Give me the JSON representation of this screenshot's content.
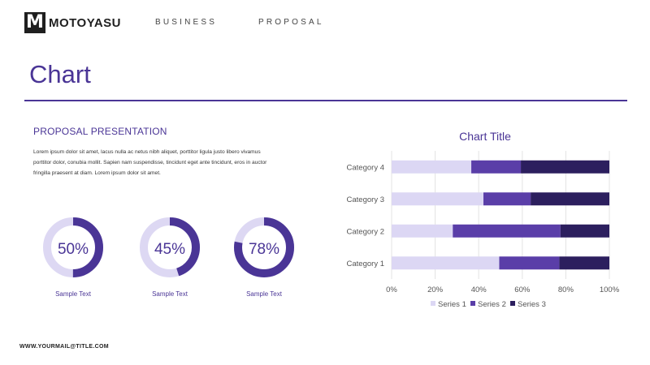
{
  "header": {
    "logo_letter": "M",
    "logo_name": "MOTOYASU",
    "word1": "BUSINESS",
    "word2": "PROPOSAL"
  },
  "page": {
    "title": "Chart",
    "subheading": "PROPOSAL PRESENTATION",
    "body": "Lorem ipsum dolor sit amet, lacus nulla ac netus nibh aliquet, porttitor ligula justo libero vivamus porttitor dolor, conubia mollit. Sapien nam suspendisse, tincidunt eget ante tincidunt, eros in auctor fringilla praesent at diam. Lorem ipsum dolor sit amet.",
    "footer": "WWW.YOURMAIL@TITLE.COM"
  },
  "donuts": [
    {
      "percent": 50,
      "label": "50%",
      "caption": "Sample Text"
    },
    {
      "percent": 45,
      "label": "45%",
      "caption": "Sample Text"
    },
    {
      "percent": 78,
      "label": "78%",
      "caption": "Sample Text"
    }
  ],
  "colors": {
    "accent": "#4a3596",
    "accent_light": "#ddd8f3",
    "series1": "#dcd7f4",
    "series2": "#5a3ea8",
    "series3": "#2c1f5e"
  },
  "chart_data": {
    "type": "bar",
    "orientation": "horizontal",
    "stacked": "percent",
    "title": "Chart Title",
    "categories": [
      "Category 1",
      "Category 2",
      "Category 3",
      "Category 4"
    ],
    "series": [
      {
        "name": "Series 1",
        "values": [
          4.3,
          2.5,
          3.5,
          4.5
        ]
      },
      {
        "name": "Series 2",
        "values": [
          2.4,
          4.4,
          1.8,
          2.8
        ]
      },
      {
        "name": "Series 3",
        "values": [
          2.0,
          2.0,
          3.0,
          5.0
        ]
      }
    ],
    "x_ticks": [
      "0%",
      "20%",
      "40%",
      "60%",
      "80%",
      "100%"
    ],
    "xlim": [
      0,
      100
    ],
    "grid": true,
    "legend": "bottom"
  }
}
